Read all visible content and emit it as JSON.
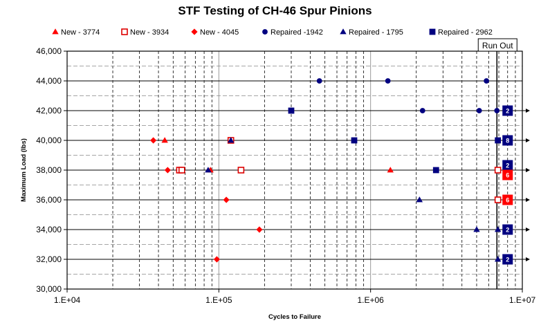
{
  "chart_data": {
    "type": "scatter",
    "title": "STF Testing of CH-46 Spur Pinions",
    "xlabel": "Cycles to Failure",
    "ylabel": "Maximum Load (lbs)",
    "x_scale": "log",
    "xlim": [
      10000,
      10000000
    ],
    "ylim": [
      30000,
      46000
    ],
    "x_tick_labels": [
      "1.E+04",
      "1.E+05",
      "1.E+06",
      "1.E+07"
    ],
    "y_tick_labels": [
      "30,000",
      "32,000",
      "34,000",
      "36,000",
      "38,000",
      "40,000",
      "42,000",
      "44,000",
      "46,000"
    ],
    "y_ticks": [
      30000,
      32000,
      34000,
      36000,
      38000,
      40000,
      42000,
      44000,
      46000
    ],
    "grid": true,
    "legend_position": "top",
    "run_out": {
      "label": "Run Out",
      "x": 6800000
    },
    "series": [
      {
        "name": "New - 3774",
        "marker": "triangle",
        "filled": true,
        "color": "#ff0000",
        "points": [
          [
            44000,
            40000
          ],
          [
            88000,
            38000
          ],
          [
            1350000,
            38000
          ]
        ]
      },
      {
        "name": "New - 3934",
        "marker": "square",
        "filled": false,
        "color": "#dd0000",
        "points": [
          [
            55000,
            38000
          ],
          [
            57000,
            38000
          ],
          [
            120000,
            40000
          ],
          [
            140000,
            38000
          ],
          [
            6900000,
            38000
          ],
          [
            6900000,
            36000
          ]
        ]
      },
      {
        "name": "New - 4045",
        "marker": "diamond",
        "filled": true,
        "color": "#ff0000",
        "points": [
          [
            37000,
            40000
          ],
          [
            46000,
            38000
          ],
          [
            97000,
            32000
          ],
          [
            112000,
            36000
          ],
          [
            185000,
            34000
          ]
        ]
      },
      {
        "name": "Repaired -1942",
        "marker": "circle",
        "filled": true,
        "color": "#000080",
        "points": [
          [
            460000,
            44000
          ],
          [
            1300000,
            44000
          ],
          [
            5800000,
            44000
          ],
          [
            2200000,
            42000
          ],
          [
            5200000,
            42000
          ],
          [
            6800000,
            42000
          ]
        ]
      },
      {
        "name": "Repaired - 1795",
        "marker": "triangle",
        "filled": true,
        "color": "#000080",
        "points": [
          [
            85000,
            38000
          ],
          [
            120000,
            40000
          ],
          [
            2100000,
            36000
          ],
          [
            5000000,
            34000
          ],
          [
            6900000,
            34000
          ],
          [
            6900000,
            32000
          ]
        ]
      },
      {
        "name": "Repaired - 2962",
        "marker": "square",
        "filled": true,
        "color": "#000080",
        "points": [
          [
            300000,
            42000
          ],
          [
            780000,
            40000
          ],
          [
            2700000,
            38000
          ],
          [
            6900000,
            40000
          ]
        ]
      }
    ],
    "runout_badges": [
      {
        "y": 42000,
        "count": "2",
        "color": "#000080"
      },
      {
        "y": 40000,
        "count": "8",
        "color": "#000080"
      },
      {
        "y": 38000,
        "count": "2",
        "color": "#000080",
        "offset": "up"
      },
      {
        "y": 38000,
        "count": "6",
        "color": "#ff0000",
        "offset": "down"
      },
      {
        "y": 36000,
        "count": "6",
        "color": "#ff0000"
      },
      {
        "y": 34000,
        "count": "2",
        "color": "#000080"
      },
      {
        "y": 32000,
        "count": "2",
        "color": "#000080"
      }
    ]
  }
}
